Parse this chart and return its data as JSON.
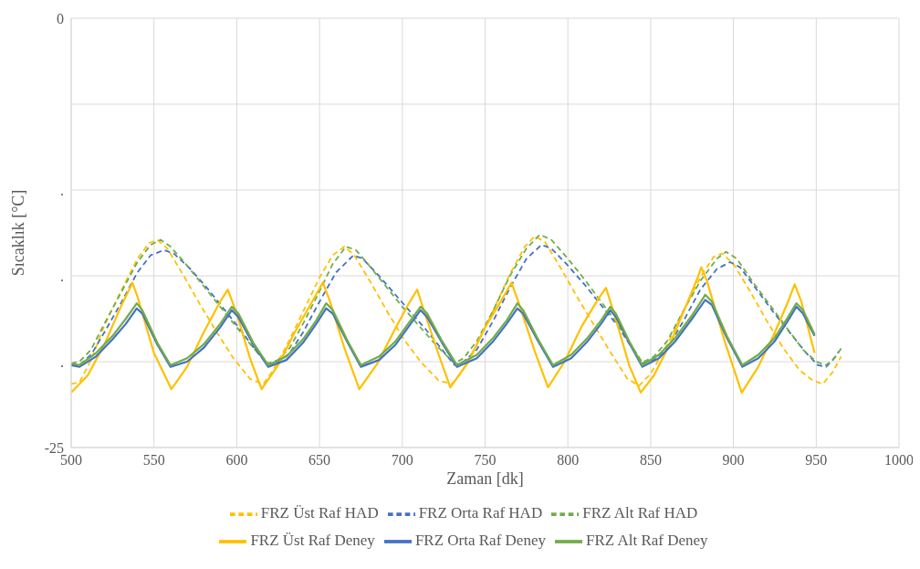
{
  "chart_data": {
    "type": "line",
    "xlabel": "Zaman [dk]",
    "ylabel": "Sıcaklık [°C]",
    "xlim": [
      500,
      1000
    ],
    "xticks": [
      500,
      550,
      600,
      650,
      700,
      750,
      800,
      850,
      900,
      950,
      1000
    ],
    "ylim": [
      -25,
      0
    ],
    "yticks": [
      0,
      {
        "value": -5,
        "label": null
      },
      {
        "value": -10,
        "label": "."
      },
      {
        "value": -15,
        "label": "."
      },
      {
        "value": -20,
        "label": "."
      },
      -25
    ],
    "grid": true,
    "legend": "bottom",
    "marker": "none",
    "series": [
      {
        "name": "FRZ Üst Raf HAD",
        "color": "#ffc000",
        "line_style": "dashed",
        "x": [
          500,
          505,
          512,
          520,
          530,
          540,
          547,
          552,
          558,
          568,
          578,
          588,
          598,
          608,
          616,
          622,
          630,
          640,
          650,
          658,
          665,
          671,
          681,
          691,
          701,
          711,
          722,
          730,
          736,
          745,
          755,
          765,
          774,
          780,
          786,
          796,
          806,
          816,
          826,
          836,
          843,
          850,
          860,
          870,
          880,
          888,
          893,
          900,
          910,
          920,
          930,
          940,
          948,
          954,
          960,
          965
        ],
        "values": [
          -21.3,
          -21.2,
          -19.9,
          -17.9,
          -15.9,
          -14.0,
          -13.1,
          -12.9,
          -13.4,
          -15.0,
          -16.7,
          -18.3,
          -19.8,
          -21.0,
          -21.3,
          -20.5,
          -19.1,
          -17.1,
          -15.1,
          -13.8,
          -13.3,
          -13.8,
          -15.4,
          -17.1,
          -18.7,
          -20.0,
          -21.1,
          -21.3,
          -20.6,
          -19.0,
          -17.0,
          -14.9,
          -13.3,
          -12.7,
          -13.0,
          -14.6,
          -16.3,
          -17.9,
          -19.5,
          -21.0,
          -21.4,
          -20.7,
          -19.0,
          -17.0,
          -15.1,
          -13.9,
          -13.7,
          -14.3,
          -15.9,
          -17.6,
          -19.2,
          -20.5,
          -21.1,
          -21.3,
          -20.6,
          -19.7
        ]
      },
      {
        "name": "FRZ Orta Raf HAD",
        "color": "#4472c4",
        "line_style": "dashed",
        "x": [
          500,
          505,
          512,
          520,
          530,
          540,
          548,
          556,
          562,
          572,
          582,
          592,
          602,
          611,
          619,
          625,
          632,
          640,
          650,
          660,
          670.5,
          676,
          684,
          694,
          704,
          714,
          724,
          731.5,
          737,
          745,
          755,
          765,
          775,
          784,
          790,
          800,
          810,
          820,
          830,
          838,
          845,
          852,
          860,
          870,
          880,
          890,
          898,
          904,
          914,
          924,
          934,
          944,
          951,
          956,
          960,
          963.7
        ],
        "values": [
          -20.2,
          -20.2,
          -19.6,
          -18.3,
          -16.6,
          -14.8,
          -13.8,
          -13.5,
          -13.7,
          -14.6,
          -15.7,
          -16.9,
          -18.1,
          -19.3,
          -20.2,
          -20.0,
          -19.5,
          -18.3,
          -16.5,
          -14.8,
          -13.8,
          -14.0,
          -14.8,
          -15.9,
          -17.0,
          -18.1,
          -19.3,
          -20.2,
          -20.0,
          -19.3,
          -17.6,
          -15.7,
          -14.0,
          -13.2,
          -13.4,
          -14.4,
          -15.5,
          -16.7,
          -17.9,
          -19.1,
          -20.1,
          -19.9,
          -19.2,
          -17.6,
          -15.8,
          -14.6,
          -14.2,
          -14.5,
          -15.8,
          -17.1,
          -18.3,
          -19.5,
          -20.2,
          -20.3,
          -19.9,
          -19.4
        ]
      },
      {
        "name": "FRZ Alt Raf HAD",
        "color": "#70ad47",
        "line_style": "dashed",
        "x": [
          500,
          505,
          512,
          520,
          530,
          540,
          548,
          554,
          560,
          570,
          580,
          590,
          600,
          610,
          619,
          625,
          632,
          640,
          650,
          658,
          666,
          672,
          680,
          690,
          700,
          710,
          720,
          731.5,
          737,
          745,
          755,
          765,
          775,
          783,
          790,
          800,
          810,
          820,
          830,
          838,
          845,
          852,
          860,
          870,
          880,
          890,
          895.5,
          902,
          912,
          922,
          932,
          942,
          950,
          956,
          961,
          966
        ],
        "values": [
          -20.1,
          -20.0,
          -19.3,
          -17.8,
          -16.0,
          -14.2,
          -13.2,
          -12.9,
          -13.3,
          -14.4,
          -15.6,
          -16.8,
          -18.0,
          -19.2,
          -20.1,
          -19.9,
          -19.2,
          -17.8,
          -15.9,
          -14.3,
          -13.3,
          -13.5,
          -14.4,
          -15.6,
          -16.8,
          -17.9,
          -19.0,
          -20.1,
          -19.8,
          -18.8,
          -17.0,
          -15.0,
          -13.4,
          -12.6,
          -12.9,
          -14.0,
          -15.2,
          -16.5,
          -17.8,
          -19.0,
          -20.05,
          -19.7,
          -18.8,
          -17.0,
          -15.3,
          -14.0,
          -13.6,
          -14.0,
          -15.4,
          -16.7,
          -18.0,
          -19.3,
          -20.0,
          -20.2,
          -19.8,
          -19.1
        ]
      },
      {
        "name": "FRZ Üst Raf Deney",
        "color": "#ffc000",
        "line_style": "solid",
        "x": [
          500,
          510,
          520,
          530,
          537,
          540,
          550,
          560.5,
          570,
          580,
          590,
          594.6,
          600,
          608,
          615,
          625,
          635,
          645,
          652,
          656,
          665,
          674,
          685,
          695,
          704,
          709,
          714,
          722,
          729,
          740,
          750,
          760,
          766,
          770,
          780,
          788,
          798,
          808,
          818,
          823,
          828,
          837,
          844,
          852,
          862,
          872,
          878,
          880.6,
          884,
          895,
          905,
          915,
          925,
          933,
          937,
          941,
          949
        ],
        "values": [
          -21.8,
          -20.8,
          -19.0,
          -16.8,
          -15.4,
          -16.2,
          -19.5,
          -21.6,
          -20.3,
          -18.3,
          -16.5,
          -15.8,
          -17.2,
          -19.8,
          -21.6,
          -20.2,
          -18.3,
          -16.6,
          -15.4,
          -16.4,
          -19.2,
          -21.6,
          -20.1,
          -18.2,
          -16.6,
          -15.8,
          -17.3,
          -19.6,
          -21.5,
          -20.0,
          -18.0,
          -16.4,
          -15.4,
          -16.5,
          -19.4,
          -21.5,
          -20.0,
          -18.0,
          -16.4,
          -15.7,
          -17.2,
          -20.2,
          -21.8,
          -20.8,
          -18.9,
          -16.6,
          -15.2,
          -14.5,
          -15.3,
          -18.9,
          -21.8,
          -20.3,
          -18.3,
          -16.5,
          -15.5,
          -16.5,
          -19.5
        ]
      },
      {
        "name": "FRZ Orta Raf Deney",
        "color": "#4472c4",
        "line_style": "solid",
        "x": [
          500,
          505,
          515,
          525,
          533,
          539.6,
          543,
          552,
          560,
          570,
          580,
          590,
          597,
          601,
          610,
          619,
          630,
          640,
          648,
          654,
          658,
          667,
          675,
          686,
          696,
          705,
          711,
          715,
          724,
          733,
          745,
          755,
          763,
          769.5,
          773,
          782,
          791,
          802,
          812,
          820,
          825.6,
          829,
          837,
          845,
          855,
          865,
          875,
          883,
          887,
          896,
          905.4,
          915,
          925,
          933,
          938,
          942,
          949
        ],
        "values": [
          -20.2,
          -20.3,
          -19.7,
          -18.7,
          -17.8,
          -16.9,
          -17.2,
          -19.0,
          -20.3,
          -20.0,
          -19.2,
          -18.0,
          -17.0,
          -17.4,
          -19.0,
          -20.3,
          -19.9,
          -18.9,
          -17.8,
          -16.9,
          -17.2,
          -18.9,
          -20.3,
          -19.9,
          -19.0,
          -17.8,
          -17.0,
          -17.4,
          -18.9,
          -20.3,
          -19.8,
          -18.8,
          -17.8,
          -16.9,
          -17.2,
          -18.8,
          -20.3,
          -19.8,
          -18.8,
          -17.8,
          -17.0,
          -17.4,
          -18.9,
          -20.3,
          -19.8,
          -18.8,
          -17.5,
          -16.4,
          -16.7,
          -18.6,
          -20.3,
          -19.8,
          -18.8,
          -17.6,
          -16.8,
          -17.2,
          -18.5
        ]
      },
      {
        "name": "FRZ Alt Raf Deney",
        "color": "#70ad47",
        "line_style": "solid",
        "x": [
          500,
          505,
          515,
          525,
          533,
          539.6,
          543,
          552,
          560,
          570,
          580,
          590,
          597,
          601,
          610,
          619,
          630,
          640,
          648,
          654,
          658,
          667,
          675,
          686,
          696,
          705,
          711,
          715,
          724,
          733,
          745,
          755,
          763,
          769.5,
          773,
          782,
          791,
          802,
          812,
          820,
          825.6,
          829,
          837,
          845,
          855,
          865,
          875,
          883,
          887,
          896,
          905.4,
          915,
          925,
          933,
          938,
          942,
          949
        ],
        "values": [
          -20.1,
          -20.2,
          -19.5,
          -18.5,
          -17.5,
          -16.6,
          -17.0,
          -18.9,
          -20.2,
          -19.8,
          -19.0,
          -17.8,
          -16.8,
          -17.2,
          -18.9,
          -20.2,
          -19.7,
          -18.7,
          -17.6,
          -16.6,
          -17.0,
          -18.8,
          -20.2,
          -19.7,
          -18.8,
          -17.6,
          -16.8,
          -17.2,
          -18.8,
          -20.2,
          -19.6,
          -18.6,
          -17.6,
          -16.6,
          -17.0,
          -18.7,
          -20.2,
          -19.6,
          -18.6,
          -17.6,
          -16.8,
          -17.2,
          -18.8,
          -20.2,
          -19.6,
          -18.6,
          -17.3,
          -16.1,
          -16.5,
          -18.5,
          -20.2,
          -19.6,
          -18.6,
          -17.4,
          -16.6,
          -17.0,
          -18.4
        ]
      }
    ]
  }
}
